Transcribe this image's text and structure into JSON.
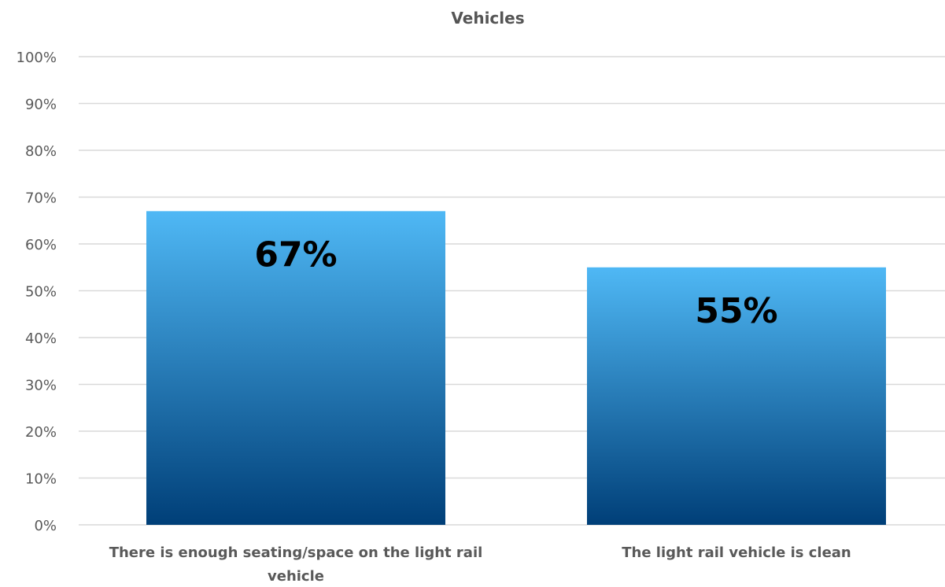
{
  "chart_data": {
    "type": "bar",
    "title": "Vehicles",
    "xlabel": "",
    "ylabel": "",
    "categories": [
      [
        "There is enough seating/space on the light rail",
        "vehicle"
      ],
      [
        "The light rail vehicle is clean"
      ]
    ],
    "values": [
      67,
      55
    ],
    "data_labels": [
      "67%",
      "55%"
    ],
    "y_ticks": [
      "0%",
      "10%",
      "20%",
      "30%",
      "40%",
      "50%",
      "60%",
      "70%",
      "80%",
      "90%",
      "100%"
    ],
    "ylim": [
      0,
      100
    ],
    "grid": true,
    "legend": "none",
    "colors": {
      "bar_top": "#4fb8f5",
      "bar_bottom": "#003f78",
      "grid": "#d9d9d9"
    }
  }
}
